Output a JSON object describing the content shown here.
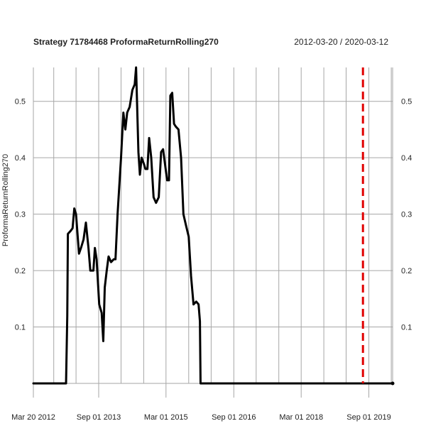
{
  "chart_data": {
    "type": "line",
    "title": "Strategy 71784468 ProformaReturnRolling270",
    "date_range": "2012-03-20 / 2020-03-12",
    "ylabel": "ProformaReturnRolling270",
    "xlim": [
      "2012-03-20",
      "2020-03-12"
    ],
    "ylim": [
      0,
      0.56
    ],
    "y_ticks": [
      0.1,
      0.2,
      0.3,
      0.4,
      0.5
    ],
    "y_tick_labels": [
      "0.1",
      "0.2",
      "0.3",
      "0.4",
      "0.5"
    ],
    "x_tick_labels": [
      {
        "date": "2012-03-20",
        "label": "Mar 20 2012"
      },
      {
        "date": "2013-09-01",
        "label": "Sep 01 2013"
      },
      {
        "date": "2015-03-01",
        "label": "Mar 01 2015"
      },
      {
        "date": "2016-09-01",
        "label": "Sep 01 2016"
      },
      {
        "date": "2018-03-01",
        "label": "Mar 01 2018"
      },
      {
        "date": "2019-09-01",
        "label": "Sep 01 2019"
      }
    ],
    "vertical_gridlines": [
      "2012-03-20",
      "2012-09-01",
      "2013-03-01",
      "2013-09-01",
      "2014-03-01",
      "2014-09-01",
      "2015-03-01",
      "2015-09-01",
      "2016-03-01",
      "2016-09-01",
      "2017-03-01",
      "2017-09-01",
      "2018-03-01",
      "2018-09-01",
      "2019-03-01",
      "2019-09-01",
      "2020-03-01"
    ],
    "grid": true,
    "series": [
      {
        "color": "#000000",
        "points": [
          [
            "2012-03-20",
            0.0
          ],
          [
            "2012-12-10",
            0.0
          ],
          [
            "2012-12-20",
            0.12
          ],
          [
            "2012-12-25",
            0.265
          ],
          [
            "2013-01-15",
            0.27
          ],
          [
            "2013-02-01",
            0.275
          ],
          [
            "2013-02-15",
            0.31
          ],
          [
            "2013-03-01",
            0.3
          ],
          [
            "2013-03-25",
            0.23
          ],
          [
            "2013-04-10",
            0.24
          ],
          [
            "2013-05-01",
            0.255
          ],
          [
            "2013-05-20",
            0.285
          ],
          [
            "2013-06-10",
            0.24
          ],
          [
            "2013-06-25",
            0.2
          ],
          [
            "2013-07-20",
            0.2
          ],
          [
            "2013-08-01",
            0.24
          ],
          [
            "2013-08-15",
            0.22
          ],
          [
            "2013-09-05",
            0.14
          ],
          [
            "2013-09-25",
            0.125
          ],
          [
            "2013-10-08",
            0.075
          ],
          [
            "2013-10-20",
            0.17
          ],
          [
            "2013-11-05",
            0.2
          ],
          [
            "2013-11-20",
            0.225
          ],
          [
            "2013-12-10",
            0.215
          ],
          [
            "2014-01-01",
            0.22
          ],
          [
            "2014-01-15",
            0.22
          ],
          [
            "2014-02-01",
            0.3
          ],
          [
            "2014-03-01",
            0.4
          ],
          [
            "2014-03-20",
            0.48
          ],
          [
            "2014-04-05",
            0.45
          ],
          [
            "2014-04-20",
            0.48
          ],
          [
            "2014-05-10",
            0.49
          ],
          [
            "2014-06-01",
            0.52
          ],
          [
            "2014-06-20",
            0.53
          ],
          [
            "2014-07-01",
            0.56
          ],
          [
            "2014-07-20",
            0.41
          ],
          [
            "2014-08-01",
            0.37
          ],
          [
            "2014-08-15",
            0.4
          ],
          [
            "2014-09-01",
            0.39
          ],
          [
            "2014-09-15",
            0.38
          ],
          [
            "2014-10-01",
            0.38
          ],
          [
            "2014-10-15",
            0.435
          ],
          [
            "2014-11-01",
            0.4
          ],
          [
            "2014-11-20",
            0.33
          ],
          [
            "2014-12-10",
            0.32
          ],
          [
            "2015-01-01",
            0.33
          ],
          [
            "2015-01-20",
            0.41
          ],
          [
            "2015-02-05",
            0.415
          ],
          [
            "2015-02-20",
            0.39
          ],
          [
            "2015-03-10",
            0.36
          ],
          [
            "2015-03-25",
            0.36
          ],
          [
            "2015-04-05",
            0.51
          ],
          [
            "2015-04-20",
            0.515
          ],
          [
            "2015-05-05",
            0.46
          ],
          [
            "2015-05-20",
            0.455
          ],
          [
            "2015-06-10",
            0.45
          ],
          [
            "2015-07-01",
            0.4
          ],
          [
            "2015-07-20",
            0.3
          ],
          [
            "2015-08-10",
            0.28
          ],
          [
            "2015-09-01",
            0.26
          ],
          [
            "2015-09-20",
            0.19
          ],
          [
            "2015-10-10",
            0.14
          ],
          [
            "2015-11-01",
            0.145
          ],
          [
            "2015-11-20",
            0.14
          ],
          [
            "2015-12-01",
            0.11
          ],
          [
            "2015-12-06",
            0.0
          ],
          [
            "2020-03-12",
            0.0
          ]
        ]
      }
    ],
    "marker": {
      "date": "2019-07-15",
      "style": "dashed",
      "color": "#e00000"
    },
    "endpoint": {
      "date": "2020-03-12",
      "value": 0.0
    }
  }
}
